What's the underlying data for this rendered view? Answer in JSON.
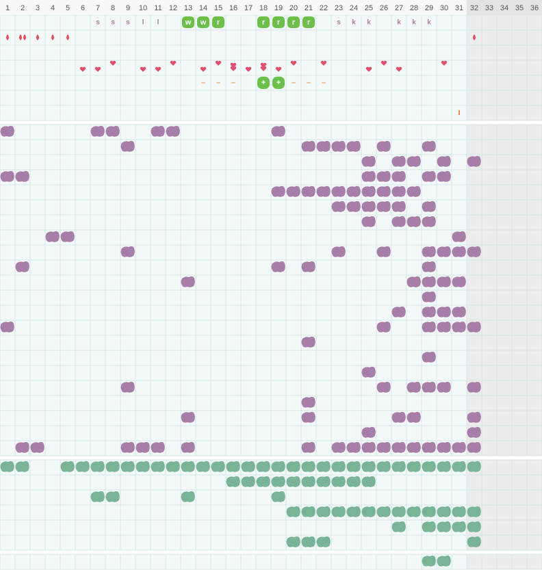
{
  "header": {
    "days": [
      1,
      2,
      3,
      4,
      5,
      6,
      7,
      8,
      9,
      10,
      11,
      12,
      13,
      14,
      15,
      16,
      17,
      18,
      19,
      20,
      21,
      22,
      23,
      24,
      25,
      26,
      27,
      28,
      29,
      30,
      31,
      32,
      33,
      34,
      35,
      36
    ]
  },
  "letter_row": [
    null,
    null,
    null,
    null,
    null,
    null,
    "s",
    "s",
    "s",
    "l",
    "l",
    null,
    "w",
    "w",
    "r",
    null,
    null,
    "r",
    "r",
    "r",
    "r",
    null,
    "s",
    "k",
    "k",
    null,
    "k",
    "k",
    "k",
    null,
    null,
    null,
    null,
    null,
    null,
    null
  ],
  "mark_row": [
    null,
    null,
    null,
    null,
    null,
    null,
    null,
    null,
    null,
    null,
    null,
    null,
    null,
    "–",
    "–",
    "–",
    null,
    "+",
    "+",
    "–",
    "–",
    "–",
    null,
    null,
    null,
    null,
    null,
    null,
    null,
    null,
    null,
    null,
    null,
    null,
    null,
    null
  ]
}
